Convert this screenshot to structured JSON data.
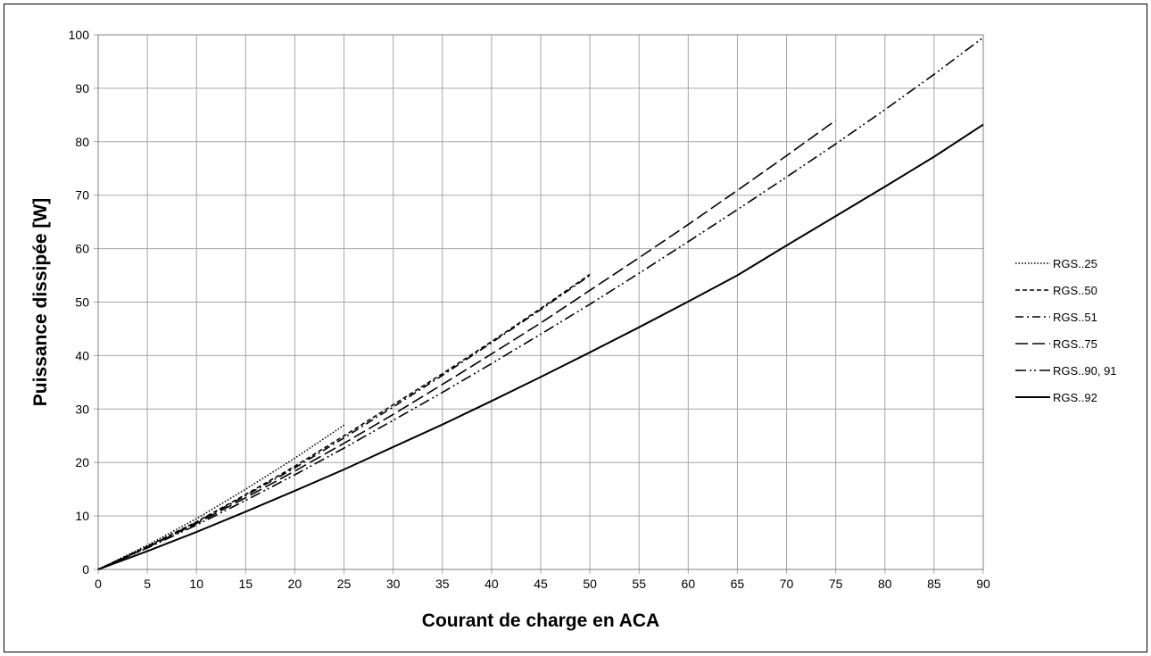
{
  "chart_data": {
    "type": "line",
    "title": "",
    "xlabel": "Courant de charge en ACA",
    "ylabel": "Puissance dissipée [W]",
    "xlim": [
      0,
      90
    ],
    "ylim": [
      0,
      100
    ],
    "x_ticks": [
      0,
      5,
      10,
      15,
      20,
      25,
      30,
      35,
      40,
      45,
      50,
      55,
      60,
      65,
      70,
      75,
      80,
      85,
      90
    ],
    "y_ticks": [
      0,
      10,
      20,
      30,
      40,
      50,
      60,
      70,
      80,
      90,
      100
    ],
    "grid": true,
    "legend_position": "right",
    "series": [
      {
        "name": "RGS..25",
        "dash": "dotted",
        "x": [
          0,
          5,
          10,
          15,
          20,
          25
        ],
        "y": [
          0,
          4.5,
          9.5,
          15,
          20.8,
          27
        ]
      },
      {
        "name": "RGS..50",
        "dash": "short-dash",
        "x": [
          0,
          5,
          10,
          15,
          20,
          25,
          30,
          35,
          40,
          45,
          50
        ],
        "y": [
          0,
          4.3,
          8.9,
          14,
          19.3,
          25,
          30.8,
          36.6,
          42.6,
          48.8,
          55.2
        ]
      },
      {
        "name": "RGS..51",
        "dash": "dash-dot",
        "x": [
          0,
          5,
          10,
          15,
          20,
          25,
          30,
          35,
          40,
          45,
          50
        ],
        "y": [
          0,
          4.2,
          8.8,
          13.8,
          19,
          24.6,
          30.4,
          36.3,
          42.4,
          48.6,
          55
        ]
      },
      {
        "name": "RGS..75",
        "dash": "long-dash",
        "x": [
          0,
          5,
          10,
          15,
          20,
          25,
          30,
          35,
          40,
          45,
          50,
          55,
          60,
          65,
          70,
          75
        ],
        "y": [
          0,
          4.1,
          8.6,
          13.4,
          18.4,
          23.6,
          29,
          34.6,
          40.3,
          46.1,
          52.2,
          58.3,
          64.5,
          70.9,
          77.4,
          84
        ]
      },
      {
        "name": "RGS..90, 91",
        "dash": "dash-dot-dot",
        "x": [
          0,
          5,
          10,
          15,
          20,
          25,
          30,
          35,
          40,
          45,
          50,
          55,
          60,
          65,
          70,
          75,
          80,
          85,
          90
        ],
        "y": [
          0,
          4,
          8.3,
          12.9,
          17.7,
          22.7,
          27.9,
          33.1,
          38.5,
          44,
          49.6,
          55.4,
          61.3,
          67.3,
          73.4,
          79.6,
          86,
          92.6,
          99.5
        ]
      },
      {
        "name": "RGS..92",
        "dash": "solid",
        "x": [
          0,
          5,
          10,
          15,
          20,
          25,
          30,
          35,
          40,
          45,
          50,
          55,
          60,
          65,
          70,
          75,
          80,
          85,
          90
        ],
        "y": [
          0,
          3.4,
          7,
          10.8,
          14.7,
          18.7,
          22.9,
          27.1,
          31.5,
          36,
          40.6,
          45.3,
          50.1,
          55,
          60.6,
          66.1,
          71.6,
          77.2,
          83.2
        ]
      }
    ]
  }
}
